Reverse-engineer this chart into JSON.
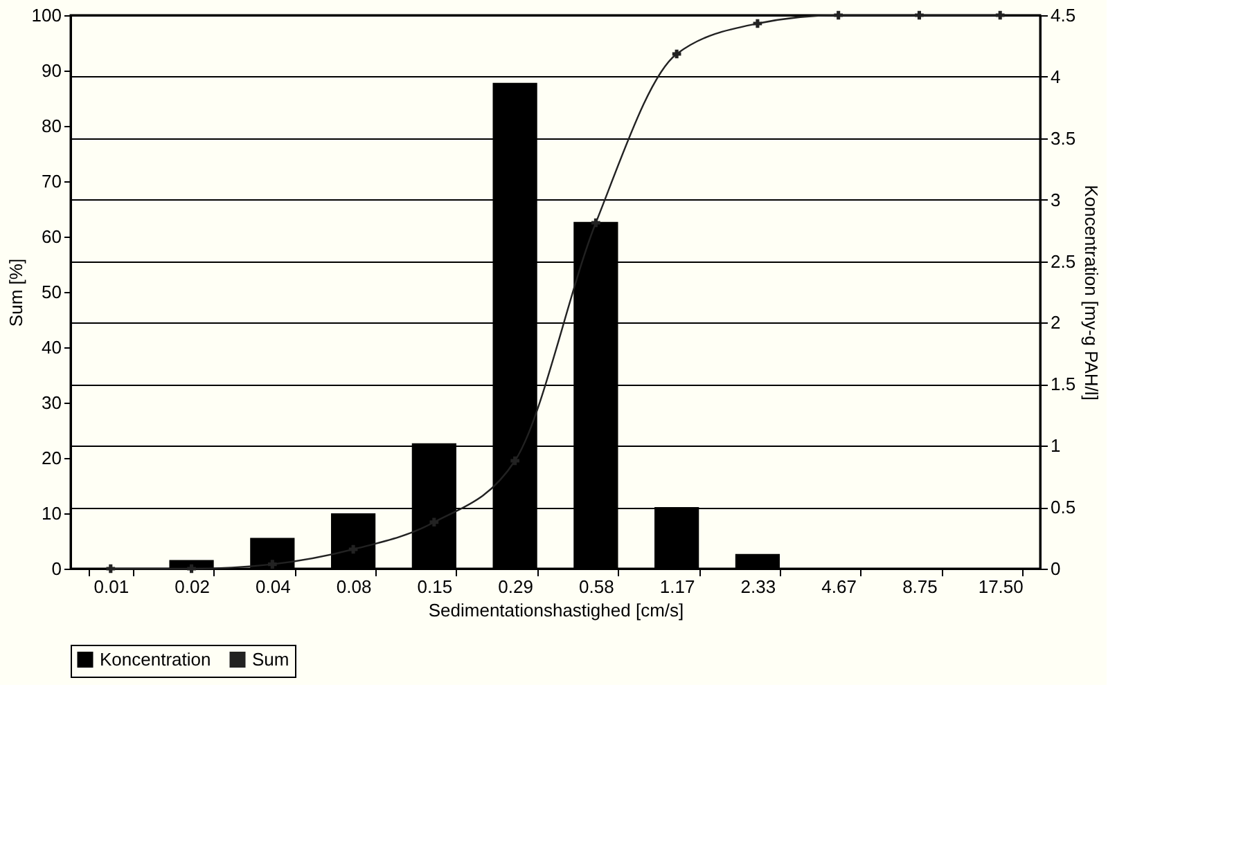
{
  "chart_data": {
    "type": "bar",
    "categories": [
      "0.01",
      "0.02",
      "0.04",
      "0.08",
      "0.15",
      "0.29",
      "0.58",
      "1.17",
      "2.33",
      "4.67",
      "8.75",
      "17.50"
    ],
    "series": [
      {
        "name": "Koncentration",
        "axis": "y2",
        "color": "#000000",
        "values": [
          0,
          0.07,
          0.25,
          0.45,
          1.02,
          3.95,
          2.82,
          0.5,
          0.12,
          0,
          0,
          0
        ]
      },
      {
        "name": "Sum",
        "type": "line",
        "color": "#222222",
        "marker": "cross",
        "values": [
          0,
          0,
          0.8,
          3.5,
          8.4,
          19.5,
          62.5,
          93,
          98.5,
          100,
          100,
          100
        ]
      }
    ],
    "xlabel": "Sedimentationshastighed [cm/s]",
    "ylabel": "Sum [%]",
    "y2label": "Koncentration [my-g PAH/l]",
    "ylim": [
      0,
      100
    ],
    "yticks": [
      0,
      10,
      20,
      30,
      40,
      50,
      60,
      70,
      80,
      90,
      100
    ],
    "y2lim": [
      0,
      4.5
    ],
    "y2ticks": [
      0,
      0.5,
      1,
      1.5,
      2,
      2.5,
      3,
      3.5,
      4,
      4.5
    ],
    "grid": "y2",
    "legend": "bottom"
  }
}
